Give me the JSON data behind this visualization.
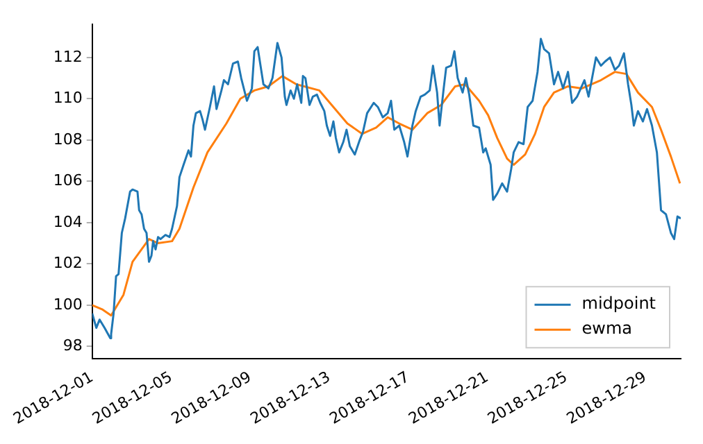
{
  "chart_data": {
    "type": "line",
    "xlim": [
      "2018-12-01",
      "2018-12-30T19:00"
    ],
    "xticks": [
      "2018-12-01",
      "2018-12-05",
      "2018-12-09",
      "2018-12-13",
      "2018-12-17",
      "2018-12-21",
      "2018-12-25",
      "2018-12-29"
    ],
    "ylim": [
      97.4,
      113.6
    ],
    "yticks": [
      98,
      100,
      102,
      104,
      106,
      108,
      110,
      112
    ],
    "grid": false,
    "legend": "bottom right",
    "series": [
      {
        "name": "midpoint",
        "color": "#1f77b4",
        "x": [
          "2018-12-01T00:00",
          "2018-12-01T05:00",
          "2018-12-01T09:00",
          "2018-12-01T15:00",
          "2018-12-01T22:00",
          "2018-12-01T23:00",
          "2018-12-02T02:00",
          "2018-12-02T05:00",
          "2018-12-02T08:00",
          "2018-12-02T12:00",
          "2018-12-02T16:00",
          "2018-12-02T22:00",
          "2018-12-03T01:00",
          "2018-12-03T07:00",
          "2018-12-03T09:00",
          "2018-12-03T12:00",
          "2018-12-03T15:00",
          "2018-12-03T18:00",
          "2018-12-03T21:00",
          "2018-12-04T00:00",
          "2018-12-04T02:00",
          "2018-12-04T05:00",
          "2018-12-04T08:00",
          "2018-12-04T11:00",
          "2018-12-04T17:00",
          "2018-12-04T22:00",
          "2018-12-05T01:00",
          "2018-12-05T07:00",
          "2018-12-05T10:00",
          "2018-12-05T15:00",
          "2018-12-05T21:00",
          "2018-12-06T00:00",
          "2018-12-06T03:00",
          "2018-12-06T06:00",
          "2018-12-06T11:00",
          "2018-12-06T14:00",
          "2018-12-06T17:00",
          "2018-12-06T23:00",
          "2018-12-07T04:00",
          "2018-12-07T07:00",
          "2018-12-07T13:00",
          "2018-12-07T16:00",
          "2018-12-07T21:00",
          "2018-12-08T03:00",
          "2018-12-08T09:00",
          "2018-12-08T13:00",
          "2018-12-08T20:00",
          "2018-12-09T02:00",
          "2018-12-09T05:00",
          "2018-12-09T09:00",
          "2018-12-09T16:00",
          "2018-12-09T22:00",
          "2018-12-10T03:00",
          "2018-12-10T09:00",
          "2018-12-10T14:00",
          "2018-12-10T18:00",
          "2018-12-10T20:00",
          "2018-12-11T01:00",
          "2018-12-11T05:00",
          "2018-12-11T09:00",
          "2018-12-11T14:00",
          "2018-12-11T16:00",
          "2018-12-11T19:00",
          "2018-12-12T00:00",
          "2018-12-12T04:00",
          "2018-12-12T09:00",
          "2018-12-12T13:00",
          "2018-12-12T18:00",
          "2018-12-12T21:00",
          "2018-12-13T01:00",
          "2018-12-13T05:00",
          "2018-12-13T08:00",
          "2018-12-13T12:00",
          "2018-12-13T17:00",
          "2018-12-13T21:00",
          "2018-12-14T01:00",
          "2018-12-14T07:00",
          "2018-12-14T13:00",
          "2018-12-14T17:00",
          "2018-12-14T22:00",
          "2018-12-15T06:00",
          "2018-12-15T11:00",
          "2018-12-15T17:00",
          "2018-12-15T23:00",
          "2018-12-16T03:00",
          "2018-12-16T07:00",
          "2018-12-16T13:00",
          "2018-12-16T19:00",
          "2018-12-16T23:00",
          "2018-12-17T05:00",
          "2018-12-17T09:00",
          "2018-12-17T15:00",
          "2018-12-17T20:00",
          "2018-12-18T02:00",
          "2018-12-18T06:00",
          "2018-12-18T11:00",
          "2018-12-18T14:00",
          "2018-12-18T19:00",
          "2018-12-18T22:00",
          "2018-12-19T04:00",
          "2018-12-19T08:00",
          "2018-12-19T12:00",
          "2018-12-19T18:00",
          "2018-12-19T22:00",
          "2018-12-20T02:00",
          "2018-12-20T07:00",
          "2018-12-20T14:00",
          "2018-12-20T19:00",
          "2018-12-20T22:00",
          "2018-12-21T04:00",
          "2018-12-21T07:00",
          "2018-12-21T12:00",
          "2018-12-21T18:00",
          "2018-12-22T00:00",
          "2018-12-22T05:00",
          "2018-12-22T08:00",
          "2018-12-22T14:00",
          "2018-12-22T20:00",
          "2018-12-23T01:00",
          "2018-12-23T07:00",
          "2018-12-23T13:00",
          "2018-12-23T17:00",
          "2018-12-23T21:00",
          "2018-12-24T03:00",
          "2018-12-24T09:00",
          "2018-12-24T14:00",
          "2018-12-24T20:00",
          "2018-12-25T02:00",
          "2018-12-25T07:00",
          "2018-12-25T13:00",
          "2018-12-25T22:00",
          "2018-12-26T03:00",
          "2018-12-26T12:00",
          "2018-12-26T18:00",
          "2018-12-26T23:00",
          "2018-12-27T05:00",
          "2018-12-27T11:00",
          "2018-12-27T16:00",
          "2018-12-27T22:00",
          "2018-12-28T03:00",
          "2018-12-28T07:00",
          "2018-12-28T10:00",
          "2018-12-28T15:00",
          "2018-12-28T21:00",
          "2018-12-29T02:00",
          "2018-12-29T08:00",
          "2018-12-29T14:00",
          "2018-12-29T19:00",
          "2018-12-30T01:00",
          "2018-12-30T07:00",
          "2018-12-30T11:00",
          "2018-12-30T15:00",
          "2018-12-30T19:00"
        ],
        "values": [
          99.6,
          98.9,
          99.3,
          98.9,
          98.4,
          98.6,
          99.6,
          101.4,
          101.5,
          103.5,
          104.2,
          105.5,
          105.6,
          105.5,
          104.6,
          104.4,
          103.7,
          103.5,
          102.1,
          102.4,
          103.1,
          102.7,
          103.3,
          103.2,
          103.4,
          103.3,
          103.7,
          104.8,
          106.2,
          106.8,
          107.5,
          107.2,
          108.7,
          109.3,
          109.4,
          109.0,
          108.5,
          109.6,
          110.6,
          109.5,
          110.4,
          110.9,
          110.7,
          111.7,
          111.8,
          111.0,
          109.9,
          110.5,
          112.3,
          112.5,
          110.7,
          110.5,
          111.0,
          112.7,
          112.0,
          110.1,
          109.7,
          110.4,
          110.0,
          110.7,
          109.8,
          111.1,
          111.0,
          109.7,
          110.1,
          110.2,
          109.8,
          109.4,
          108.7,
          108.2,
          108.9,
          108.1,
          107.4,
          107.9,
          108.5,
          107.7,
          107.3,
          108.0,
          108.4,
          109.3,
          109.8,
          109.6,
          109.1,
          109.3,
          109.9,
          108.5,
          108.7,
          107.9,
          107.2,
          108.7,
          109.4,
          110.1,
          110.2,
          110.4,
          111.6,
          110.3,
          108.7,
          110.5,
          111.5,
          111.6,
          112.3,
          111.0,
          110.3,
          111.0,
          110.2,
          108.7,
          108.6,
          107.4,
          107.6,
          106.8,
          105.1,
          105.4,
          105.9,
          105.5,
          106.6,
          107.4,
          107.9,
          107.8,
          109.6,
          109.9,
          111.3,
          112.9,
          112.4,
          112.2,
          110.7,
          111.3,
          110.5,
          111.3,
          109.8,
          110.1,
          110.9,
          110.1,
          112.0,
          111.6,
          111.8,
          112.0,
          111.4,
          111.6,
          112.2,
          110.7,
          109.7,
          108.7,
          109.4,
          108.9,
          109.5,
          108.7,
          107.4,
          104.6,
          104.4,
          103.5,
          103.2,
          104.3,
          104.2
        ]
      },
      {
        "name": "ewma",
        "color": "#ff7f0e",
        "x": [
          "2018-12-01T00:00",
          "2018-12-01T12:00",
          "2018-12-01T23:00",
          "2018-12-02T14:00",
          "2018-12-03T01:00",
          "2018-12-03T21:00",
          "2018-12-04T08:00",
          "2018-12-05T01:00",
          "2018-12-05T10:00",
          "2018-12-06T03:00",
          "2018-12-06T20:00",
          "2018-12-07T19:00",
          "2018-12-08T12:00",
          "2018-12-09T05:00",
          "2018-12-09T22:00",
          "2018-12-10T15:00",
          "2018-12-11T08:00",
          "2018-12-12T12:00",
          "2018-12-13T05:00",
          "2018-12-13T22:00",
          "2018-12-14T16:00",
          "2018-12-15T09:00",
          "2018-12-15T23:00",
          "2018-12-16T13:00",
          "2018-12-17T05:00",
          "2018-12-17T23:00",
          "2018-12-18T16:00",
          "2018-12-19T09:00",
          "2018-12-19T21:00",
          "2018-12-20T14:00",
          "2018-12-21T01:00",
          "2018-12-21T12:00",
          "2018-12-22T00:00",
          "2018-12-22T08:00",
          "2018-12-22T22:00",
          "2018-12-23T10:00",
          "2018-12-23T21:00",
          "2018-12-24T09:00",
          "2018-12-25T02:00",
          "2018-12-25T19:00",
          "2018-12-26T18:00",
          "2018-12-27T11:00",
          "2018-12-28T01:00",
          "2018-12-28T15:00",
          "2018-12-29T08:00",
          "2018-12-29T19:00",
          "2018-12-30T07:00",
          "2018-12-30T18:00"
        ],
        "values": [
          100.0,
          99.8,
          99.5,
          100.5,
          102.1,
          103.2,
          103.0,
          103.1,
          103.7,
          105.7,
          107.4,
          108.8,
          110.0,
          110.4,
          110.6,
          111.1,
          110.7,
          110.4,
          109.6,
          108.8,
          108.3,
          108.6,
          109.1,
          108.8,
          108.5,
          109.3,
          109.7,
          110.6,
          110.7,
          109.9,
          109.2,
          108.1,
          107.1,
          106.8,
          107.3,
          108.3,
          109.6,
          110.3,
          110.6,
          110.5,
          110.9,
          111.3,
          111.2,
          110.3,
          109.6,
          108.5,
          107.2,
          105.9
        ]
      }
    ]
  }
}
